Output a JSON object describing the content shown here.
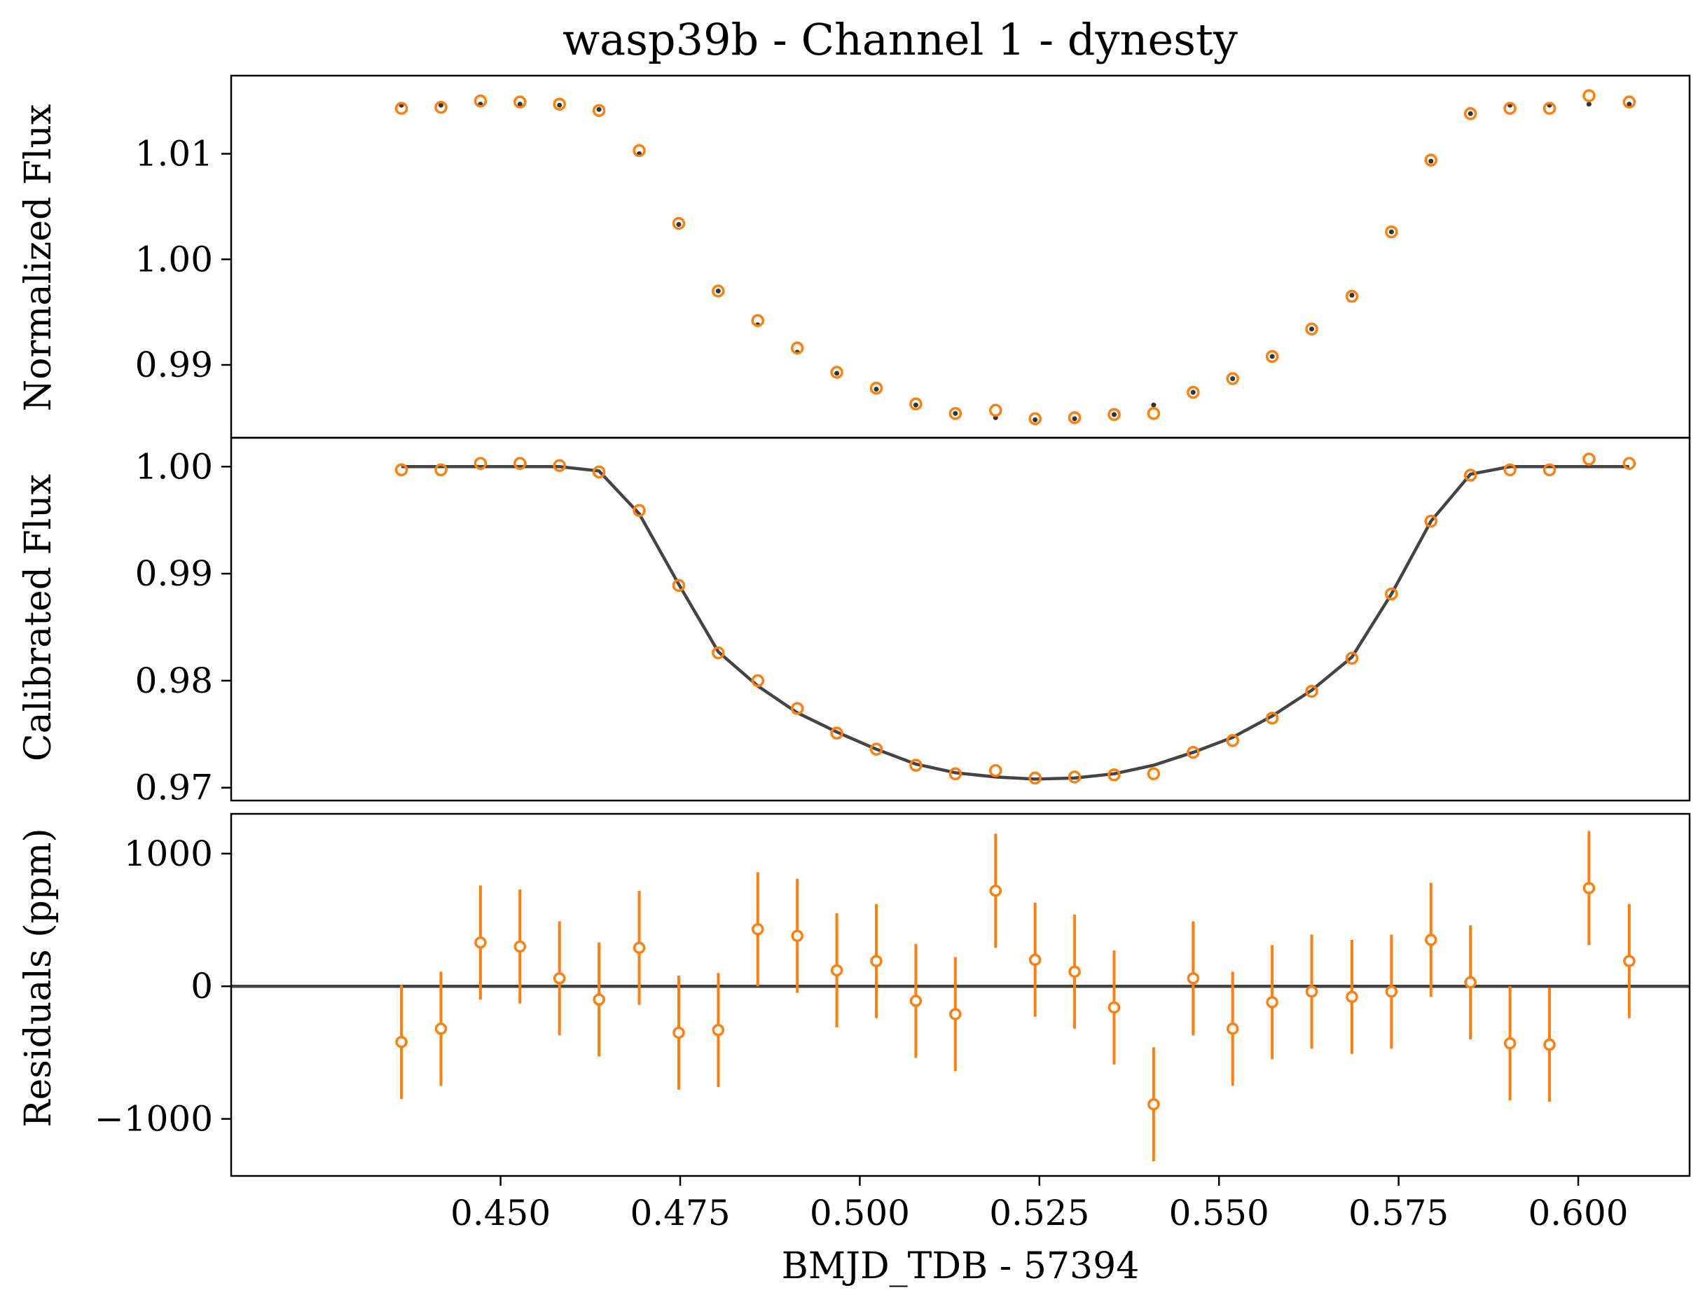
{
  "title": "wasp39b - Channel 1 - dynesty",
  "xlabel": "BMJD_TDB - 57394",
  "colors": {
    "data": "#ff7f0e",
    "model": "#444444",
    "raw_model": "#333333",
    "axes": "#000000"
  },
  "chart_data": [
    {
      "type": "scatter",
      "panel": "top",
      "ylabel": "Normalized Flux",
      "xlim": [
        0.4125,
        0.6155
      ],
      "ylim": [
        0.9831,
        1.0174
      ],
      "yticks": [
        "0.99",
        "1.00",
        "1.01"
      ],
      "grid": false,
      "x": [
        0.4362,
        0.4417,
        0.4472,
        0.4527,
        0.4582,
        0.4637,
        0.4693,
        0.4748,
        0.4803,
        0.4858,
        0.4913,
        0.4968,
        0.5023,
        0.5078,
        0.5133,
        0.5189,
        0.5244,
        0.5299,
        0.5354,
        0.5409,
        0.5464,
        0.5519,
        0.5574,
        0.5629,
        0.5685,
        0.574,
        0.5795,
        0.585,
        0.5905,
        0.596,
        0.6015,
        0.6071
      ],
      "series": [
        {
          "values": [
            1.0143,
            1.0144,
            1.015,
            1.0149,
            1.0147,
            1.0141,
            1.0103,
            1.0034,
            0.997,
            0.9942,
            0.9916,
            0.9893,
            0.9878,
            0.9863,
            0.9854,
            0.9857,
            0.9849,
            0.985,
            0.9853,
            0.9854,
            0.9874,
            0.9887,
            0.9908,
            0.9934,
            0.9965,
            1.0026,
            1.0094,
            1.0138,
            1.0143,
            1.0143,
            1.0155,
            1.0149
          ]
        },
        {
          "values": [
            1.0146,
            1.0146,
            1.0147,
            1.0147,
            1.0146,
            1.0142,
            1.01,
            1.0033,
            0.997,
            0.9938,
            0.9912,
            0.9892,
            0.9877,
            0.9862,
            0.9854,
            0.985,
            0.9848,
            0.9849,
            0.9853,
            0.9862,
            0.9874,
            0.9887,
            0.9908,
            0.9934,
            0.9966,
            1.0026,
            1.0093,
            1.0138,
            1.0146,
            1.0146,
            1.0147,
            1.0147
          ]
        }
      ]
    },
    {
      "type": "line",
      "panel": "middle",
      "ylabel": "Calibrated Flux",
      "xlim": [
        0.4125,
        0.6155
      ],
      "ylim": [
        0.9688,
        1.0027
      ],
      "yticks": [
        "0.97",
        "0.98",
        "0.99",
        "1.00"
      ],
      "grid": false,
      "x": [
        0.4362,
        0.4417,
        0.4472,
        0.4527,
        0.4582,
        0.4637,
        0.4693,
        0.4748,
        0.4803,
        0.4858,
        0.4913,
        0.4968,
        0.5023,
        0.5078,
        0.5133,
        0.5189,
        0.5244,
        0.5299,
        0.5354,
        0.5409,
        0.5464,
        0.5519,
        0.5574,
        0.5629,
        0.5685,
        0.574,
        0.5795,
        0.585,
        0.5905,
        0.596,
        0.6015,
        0.6071
      ],
      "series": [
        {
          "values": [
            0.9997,
            0.9997,
            1.0003,
            1.0003,
            1.0001,
            0.9995,
            0.9959,
            0.9889,
            0.9826,
            0.98,
            0.9774,
            0.9751,
            0.9736,
            0.9721,
            0.9713,
            0.9716,
            0.9709,
            0.971,
            0.9712,
            0.9713,
            0.9733,
            0.9744,
            0.9765,
            0.979,
            0.9821,
            0.9881,
            0.9949,
            0.9992,
            0.9997,
            0.9997,
            1.0007,
            1.0003
          ]
        },
        {
          "values": [
            1.0,
            1.0,
            1.0,
            1.0,
            1.0,
            0.9996,
            0.9956,
            0.989,
            0.9827,
            0.9795,
            0.977,
            0.9752,
            0.9736,
            0.9722,
            0.9714,
            0.971,
            0.9708,
            0.9709,
            0.9713,
            0.9721,
            0.9733,
            0.9747,
            0.9767,
            0.9791,
            0.9822,
            0.9881,
            0.9949,
            0.9993,
            1.0,
            1.0,
            1.0,
            1.0
          ]
        }
      ]
    },
    {
      "type": "scatter",
      "panel": "bottom",
      "ylabel": "Residuals (ppm)",
      "xlim": [
        0.4125,
        0.6155
      ],
      "ylim": [
        -1430,
        1300
      ],
      "yticks": [
        "−1000",
        "0",
        "1000"
      ],
      "xticks": [
        "0.450",
        "0.475",
        "0.500",
        "0.525",
        "0.550",
        "0.575",
        "0.600"
      ],
      "grid": false,
      "x": [
        0.4362,
        0.4417,
        0.4472,
        0.4527,
        0.4582,
        0.4637,
        0.4693,
        0.4748,
        0.4803,
        0.4858,
        0.4913,
        0.4968,
        0.5023,
        0.5078,
        0.5133,
        0.5189,
        0.5244,
        0.5299,
        0.5354,
        0.5409,
        0.5464,
        0.5519,
        0.5574,
        0.5629,
        0.5685,
        0.574,
        0.5795,
        0.585,
        0.5905,
        0.596,
        0.6015,
        0.6071
      ],
      "values": [
        -420,
        -320,
        330,
        300,
        60,
        -100,
        290,
        -350,
        -330,
        430,
        380,
        120,
        190,
        -110,
        -210,
        720,
        200,
        110,
        -160,
        -890,
        60,
        -320,
        -120,
        -40,
        -80,
        -40,
        350,
        30,
        -430,
        -440,
        740,
        190
      ],
      "yerr": 430,
      "hline": 0
    }
  ]
}
